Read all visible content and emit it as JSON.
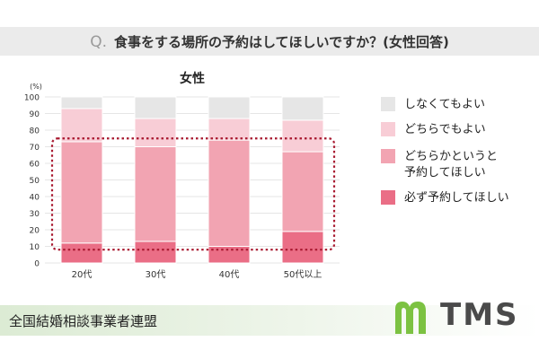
{
  "question": {
    "prefix": "Q.",
    "text": "食事をする場所の予約はしてほしいですか？(女性回答)"
  },
  "chart_data": {
    "type": "bar",
    "stacked": true,
    "title": "女性",
    "unit_label": "(%)",
    "categories": [
      "20代",
      "30代",
      "40代",
      "50代以上"
    ],
    "ylim": [
      0,
      100
    ],
    "yticks": [
      0,
      10,
      20,
      30,
      40,
      50,
      60,
      70,
      80,
      90,
      100
    ],
    "series": [
      {
        "name": "必ず予約してほしい",
        "color": "#ea6e86",
        "values": [
          12,
          13,
          10,
          19
        ]
      },
      {
        "name": "どちらかというと予約してほしい",
        "color": "#f2a4b2",
        "values": [
          61,
          57,
          64,
          48
        ]
      },
      {
        "name": "どちらでもよい",
        "color": "#f8cdd6",
        "values": [
          20,
          17,
          13,
          19
        ]
      },
      {
        "name": "しなくてもよい",
        "color": "#e6e6e6",
        "values": [
          7,
          13,
          13,
          14
        ]
      }
    ],
    "highlight_range": [
      8,
      75
    ],
    "highlight_color": "#a8182f"
  },
  "legend": {
    "items": [
      {
        "label": "しなくてもよい",
        "color": "#e6e6e6"
      },
      {
        "label": "どちらでもよい",
        "color": "#f8cdd6"
      },
      {
        "label": "どちらかというと\n予約してほしい",
        "color": "#f2a4b2"
      },
      {
        "label": "必ず予約してほしい",
        "color": "#ea6e86"
      }
    ]
  },
  "footer": {
    "org": "全国結婚相談事業者連盟",
    "logo_text": "TMS",
    "logo_color": "#7cc242"
  }
}
